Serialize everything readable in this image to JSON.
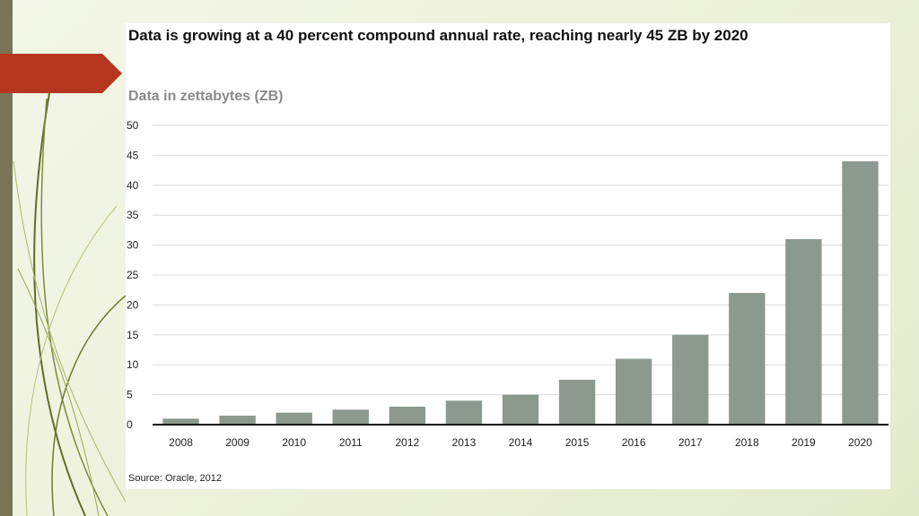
{
  "slide": {
    "accent_color": "#b5361f",
    "sidebar_color": "#7b7358",
    "background_color": "#eef2dc"
  },
  "chart_data": {
    "type": "bar",
    "title": "Data is growing at a 40 percent compound annual rate, reaching nearly 45 ZB by 2020",
    "subtitle": "Data in zettabytes (ZB)",
    "xlabel": "",
    "ylabel": "Data in zettabytes (ZB)",
    "categories": [
      "2008",
      "2009",
      "2010",
      "2011",
      "2012",
      "2013",
      "2014",
      "2015",
      "2016",
      "2017",
      "2018",
      "2019",
      "2020"
    ],
    "values": [
      1,
      1.5,
      2,
      2.5,
      3,
      4,
      5,
      7.5,
      11,
      15,
      22,
      31,
      44
    ],
    "ylim": [
      0,
      50
    ],
    "yticks": [
      0,
      5,
      10,
      15,
      20,
      25,
      30,
      35,
      40,
      45,
      50
    ],
    "grid": true,
    "bar_color": "#8c998e",
    "source": "Source: Oracle, 2012"
  }
}
